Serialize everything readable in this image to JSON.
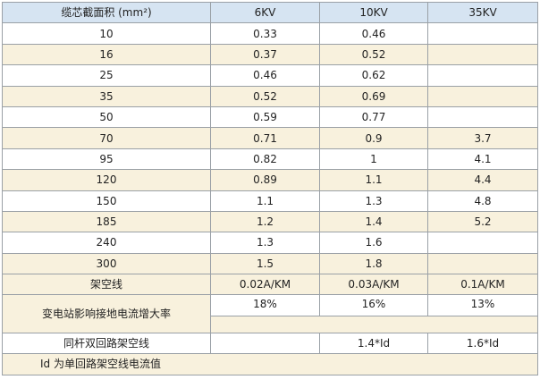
{
  "header": {
    "col0": "缆芯截面积 (mm²)",
    "col1": "6KV",
    "col2": "10KV",
    "col3": "35KV"
  },
  "rows": [
    [
      "10",
      "0.33",
      "0.46",
      ""
    ],
    [
      "16",
      "0.37",
      "0.52",
      ""
    ],
    [
      "25",
      "0.46",
      "0.62",
      ""
    ],
    [
      "35",
      "0.52",
      "0.69",
      ""
    ],
    [
      "50",
      "0.59",
      "0.77",
      ""
    ],
    [
      "70",
      "0.71",
      "0.9",
      "3.7"
    ],
    [
      "95",
      "0.82",
      "1",
      "4.1"
    ],
    [
      "120",
      "0.89",
      "1.1",
      "4.4"
    ],
    [
      "150",
      "1.1",
      "1.3",
      "4.8"
    ],
    [
      "185",
      "1.2",
      "1.4",
      "5.2"
    ],
    [
      "240",
      "1.3",
      "1.6",
      ""
    ],
    [
      "300",
      "1.5",
      "1.8",
      ""
    ]
  ],
  "overhead": {
    "label": "架空线",
    "v6": "0.02A/KM",
    "v10": "0.03A/KM",
    "v35": "0.1A/KM"
  },
  "substation": {
    "label": "变电站影响接地电流增大率",
    "v6": "18%",
    "v10": "16%",
    "v35": "13%"
  },
  "same_pole": {
    "label": "同杆双回路架空线",
    "v6": "",
    "v10": "1.4*Id",
    "v35": "1.6*Id"
  },
  "note": "Id 为单回路架空线电流值"
}
